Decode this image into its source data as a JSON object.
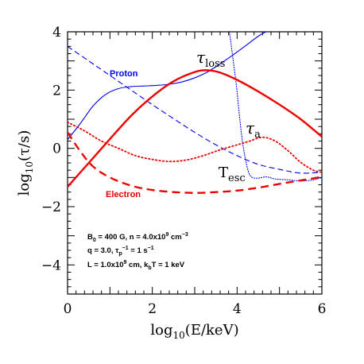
{
  "chart_data": {
    "type": "line",
    "xlabel": {
      "main": "log",
      "sub": "10",
      "rest": "(E/keV)"
    },
    "ylabel": {
      "main": "log",
      "sub": "10",
      "rest": "(τ/s)"
    },
    "xlim": [
      0,
      6
    ],
    "ylim": [
      -5,
      4
    ],
    "x_ticks": [
      0,
      2,
      4,
      6
    ],
    "x_tick_labels": [
      "0",
      "2",
      "4",
      "6"
    ],
    "y_ticks": [
      -4,
      -2,
      0,
      2,
      4
    ],
    "y_tick_labels": [
      "−4",
      "−2",
      "0",
      "2",
      "4"
    ],
    "grid": false,
    "colors": {
      "proton": "#0000ee",
      "electron": "#ee0000",
      "text": "#000000"
    },
    "series": [
      {
        "name": "Proton",
        "quantity": "tau_loss",
        "style": "solid",
        "color": "#0000ee",
        "width": 1.1,
        "points": [
          [
            0,
            0.3
          ],
          [
            0.3,
            0.85
          ],
          [
            0.6,
            1.45
          ],
          [
            0.9,
            1.85
          ],
          [
            1.2,
            2.05
          ],
          [
            1.5,
            2.12
          ],
          [
            1.8,
            2.14
          ],
          [
            2.1,
            2.16
          ],
          [
            2.4,
            2.2
          ],
          [
            2.7,
            2.28
          ],
          [
            3.0,
            2.42
          ],
          [
            3.3,
            2.62
          ],
          [
            3.6,
            2.9
          ],
          [
            3.9,
            3.2
          ],
          [
            4.2,
            3.52
          ],
          [
            4.5,
            3.85
          ],
          [
            4.68,
            4.0
          ]
        ]
      },
      {
        "name": "Proton",
        "quantity": "tau_esc",
        "style": "dashed",
        "color": "#0000ee",
        "width": 1.1,
        "points": [
          [
            0,
            3.5
          ],
          [
            0.5,
            3.0
          ],
          [
            1,
            2.5
          ],
          [
            1.5,
            2.0
          ],
          [
            2,
            1.5
          ],
          [
            2.5,
            1.02
          ],
          [
            3,
            0.55
          ],
          [
            3.5,
            0.12
          ],
          [
            4,
            -0.25
          ],
          [
            4.5,
            -0.55
          ],
          [
            5,
            -0.72
          ],
          [
            5.5,
            -0.85
          ],
          [
            6,
            -0.82
          ]
        ]
      },
      {
        "name": "Proton",
        "quantity": "tau_a",
        "style": "dotted",
        "color": "#0000ee",
        "width": 1.1,
        "points": [
          [
            3.82,
            4.0
          ],
          [
            3.9,
            3.1
          ],
          [
            3.98,
            2.2
          ],
          [
            4.05,
            1.2
          ],
          [
            4.12,
            0.3
          ],
          [
            4.2,
            -0.4
          ],
          [
            4.28,
            -0.85
          ],
          [
            4.36,
            -1.0
          ],
          [
            4.5,
            -1.02
          ],
          [
            4.7,
            -0.98
          ],
          [
            4.9,
            -1.05
          ],
          [
            5.2,
            -1.08
          ],
          [
            5.5,
            -1.12
          ],
          [
            5.8,
            -1.08
          ],
          [
            6,
            -1.0
          ]
        ]
      },
      {
        "name": "Electron",
        "quantity": "tau_loss",
        "style": "solid",
        "color": "#ee0000",
        "width": 2.4,
        "points": [
          [
            0,
            -1.32
          ],
          [
            0.5,
            -0.5
          ],
          [
            1,
            0.32
          ],
          [
            1.5,
            1.12
          ],
          [
            2,
            1.78
          ],
          [
            2.5,
            2.3
          ],
          [
            3,
            2.62
          ],
          [
            3.3,
            2.68
          ],
          [
            3.6,
            2.6
          ],
          [
            4,
            2.35
          ],
          [
            4.5,
            1.95
          ],
          [
            5,
            1.5
          ],
          [
            5.5,
            1.0
          ],
          [
            6,
            0.4
          ]
        ]
      },
      {
        "name": "Electron",
        "quantity": "tau_esc",
        "style": "dashed",
        "color": "#ee0000",
        "width": 2.4,
        "points": [
          [
            0,
            0.55
          ],
          [
            0.3,
            -0.1
          ],
          [
            0.6,
            -0.62
          ],
          [
            1,
            -1.0
          ],
          [
            1.5,
            -1.28
          ],
          [
            2,
            -1.43
          ],
          [
            2.5,
            -1.5
          ],
          [
            3,
            -1.53
          ],
          [
            3.5,
            -1.5
          ],
          [
            4,
            -1.45
          ],
          [
            4.5,
            -1.35
          ],
          [
            5,
            -1.22
          ],
          [
            5.5,
            -1.1
          ],
          [
            6,
            -0.98
          ]
        ]
      },
      {
        "name": "Electron",
        "quantity": "tau_a",
        "style": "dotted",
        "color": "#ee0000",
        "width": 1.8,
        "points": [
          [
            0,
            0.9
          ],
          [
            0.4,
            0.6
          ],
          [
            0.8,
            0.25
          ],
          [
            1.2,
            0.0
          ],
          [
            1.6,
            -0.25
          ],
          [
            2,
            -0.38
          ],
          [
            2.4,
            -0.45
          ],
          [
            2.8,
            -0.4
          ],
          [
            3.2,
            -0.25
          ],
          [
            3.6,
            -0.05
          ],
          [
            4,
            0.12
          ],
          [
            4.3,
            0.25
          ],
          [
            4.6,
            0.38
          ],
          [
            4.9,
            0.25
          ],
          [
            5.2,
            -0.08
          ],
          [
            5.5,
            -0.48
          ],
          [
            5.8,
            -0.75
          ],
          [
            6,
            -0.82
          ]
        ]
      }
    ],
    "labels": {
      "proton": "Proton",
      "electron": "Electron",
      "tau_loss_symbol": "τ",
      "tau_loss_sub": "loss",
      "tau_a_symbol": "τ",
      "tau_a_sub": "a",
      "t_esc_symbol": "T",
      "t_esc_sub": "esc"
    },
    "annotations": [
      {
        "a": "B",
        "a_sub": "0",
        "b": " = 400 G, n = 4.0x10",
        "b_sup": "9",
        "c": " cm",
        "c_sup": "−3",
        "d": ""
      },
      {
        "a": "q = 3.0, τ",
        "a_sub": "p",
        "b": "",
        "b_sup": "−1",
        "c": " = 1 s",
        "c_sup": "−1",
        "d": ""
      },
      {
        "a": "L = 1.0x10",
        "a_sub": "",
        "b": "",
        "b_sup": "9",
        "c": " cm, k",
        "c_sup": "",
        "c_sub": "b",
        "d": "T = 1 keV"
      }
    ]
  }
}
